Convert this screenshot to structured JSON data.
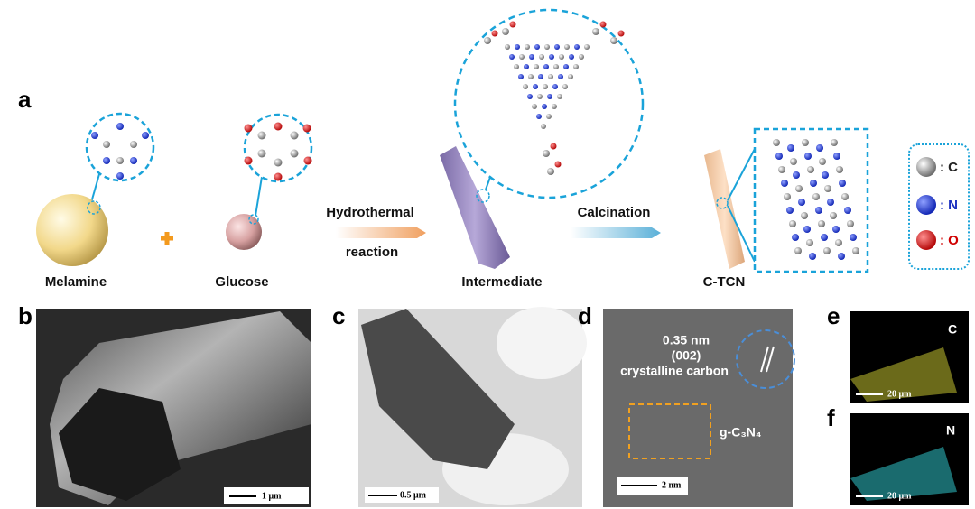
{
  "panel_a": {
    "label": "a",
    "melamine": "Melamine",
    "glucose": "Glucose",
    "step1_line1": "Hydrothermal",
    "step1_line2": "reaction",
    "intermediate": "Intermediate",
    "step2": "Calcination",
    "product": "C-TCN",
    "legend": [
      ": C",
      ": N",
      ": O"
    ]
  },
  "panel_b": {
    "label": "b",
    "scale_bar": "1 μm"
  },
  "panel_c": {
    "label": "c",
    "scale_bar": "0.5 μm"
  },
  "panel_d": {
    "label": "d",
    "spacing": "0.35 nm",
    "plane": "(002)",
    "phase": "crystalline carbon",
    "region": "g-C₃N₄",
    "scale_bar": "2 nm"
  },
  "panel_e": {
    "label": "e",
    "element": "C",
    "scale_bar": "20 μm"
  },
  "panel_f": {
    "label": "f",
    "element": "N",
    "scale_bar": "20 μm"
  }
}
